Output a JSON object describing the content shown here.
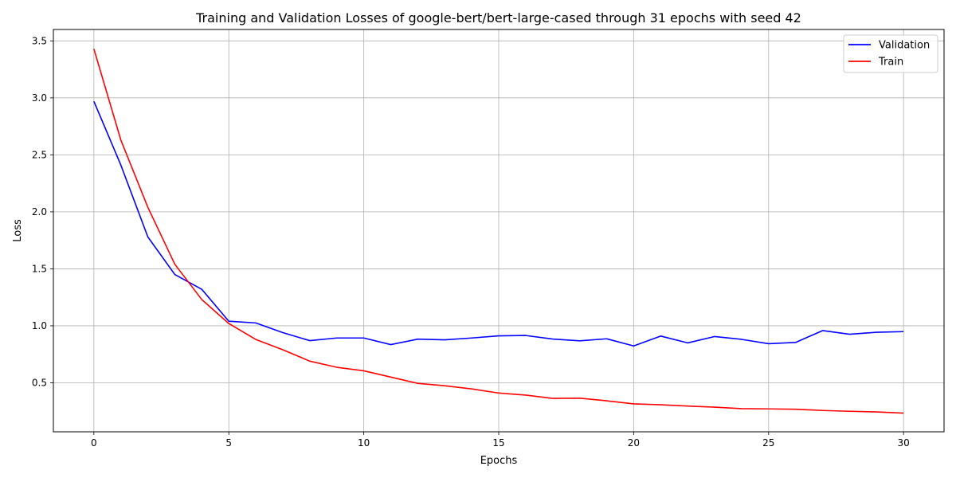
{
  "chart_data": {
    "type": "line",
    "title": "Training and Validation Losses of google-bert/bert-large-cased through 31 epochs with seed 42",
    "xlabel": "Epochs",
    "ylabel": "Loss",
    "xlim": [
      -1.5,
      31.5
    ],
    "ylim": [
      0.07,
      3.6
    ],
    "xticks": [
      0,
      5,
      10,
      15,
      20,
      25,
      30
    ],
    "yticks": [
      0.5,
      1.0,
      1.5,
      2.0,
      2.5,
      3.0,
      3.5
    ],
    "ytick_labels": [
      "0.5",
      "1.0",
      "1.5",
      "2.0",
      "2.5",
      "3.0",
      "3.5"
    ],
    "grid": true,
    "legend_position": "top-right",
    "x": [
      0,
      1,
      2,
      3,
      4,
      5,
      6,
      7,
      8,
      9,
      10,
      11,
      12,
      13,
      14,
      15,
      16,
      17,
      18,
      19,
      20,
      21,
      22,
      23,
      24,
      25,
      26,
      27,
      28,
      29,
      30
    ],
    "series": [
      {
        "name": "Validation",
        "color": "#0000ff",
        "values": [
          2.97,
          2.41,
          1.78,
          1.45,
          1.32,
          1.04,
          1.025,
          0.94,
          0.87,
          0.893,
          0.893,
          0.835,
          0.883,
          0.877,
          0.893,
          0.912,
          0.915,
          0.884,
          0.868,
          0.886,
          0.823,
          0.91,
          0.85,
          0.906,
          0.881,
          0.843,
          0.854,
          0.958,
          0.926,
          0.943,
          0.949
        ]
      },
      {
        "name": "Train",
        "color": "#ff0000",
        "values": [
          3.43,
          2.63,
          2.04,
          1.54,
          1.23,
          1.02,
          0.88,
          0.79,
          0.69,
          0.636,
          0.605,
          0.55,
          0.495,
          0.474,
          0.446,
          0.41,
          0.392,
          0.363,
          0.365,
          0.342,
          0.315,
          0.307,
          0.296,
          0.286,
          0.273,
          0.271,
          0.268,
          0.257,
          0.25,
          0.244,
          0.234
        ]
      }
    ]
  }
}
